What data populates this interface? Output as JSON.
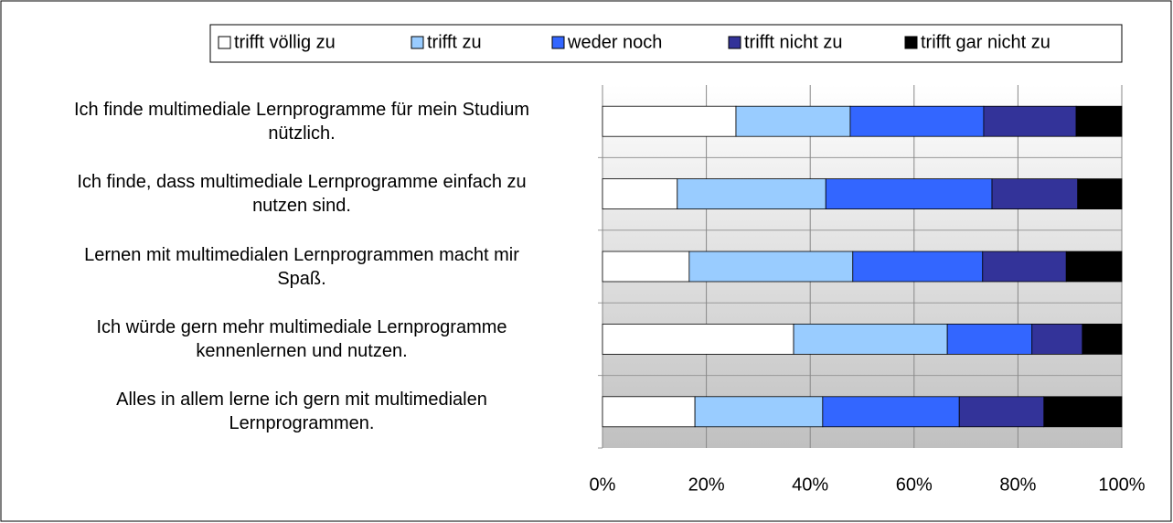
{
  "chart_data": {
    "type": "stacked-bar-horizontal",
    "categories": [
      "Ich finde multimediale Lernprogramme für mein Studium\nnützlich.",
      "Ich finde, dass multimediale Lernprogramme einfach zu\nnutzen sind.",
      "Lernen mit multimedialen Lernprogrammen macht mir\nSpaß.",
      "Ich würde gern mehr multimediale Lernprogramme\nkennenlernen und nutzen.",
      "Alles in allem lerne ich gern mit multimedialen\nLernprogrammen."
    ],
    "series": [
      {
        "name": "trifft völlig zu",
        "color": "#ffffff",
        "values": [
          25.7,
          14.4,
          16.7,
          36.8,
          17.8
        ]
      },
      {
        "name": "trifft zu",
        "color": "#99ccff",
        "values": [
          22.0,
          28.6,
          31.5,
          29.6,
          24.6
        ]
      },
      {
        "name": "weder noch",
        "color": "#3366ff",
        "values": [
          25.7,
          32.0,
          25.0,
          16.3,
          26.3
        ]
      },
      {
        "name": "trifft nicht zu",
        "color": "#333399",
        "values": [
          17.8,
          16.5,
          16.1,
          9.7,
          16.3
        ]
      },
      {
        "name": "trifft gar nicht zu",
        "color": "#000000",
        "values": [
          8.8,
          8.5,
          10.7,
          7.6,
          15.0
        ]
      }
    ],
    "xlim": [
      0,
      100
    ],
    "xticks": [
      {
        "value": 0,
        "label": "0%"
      },
      {
        "value": 20,
        "label": "20%"
      },
      {
        "value": 40,
        "label": "40%"
      },
      {
        "value": 60,
        "label": "60%"
      },
      {
        "value": 80,
        "label": "80%"
      },
      {
        "value": 100,
        "label": "100%"
      }
    ],
    "grid": true,
    "legend": "top"
  }
}
